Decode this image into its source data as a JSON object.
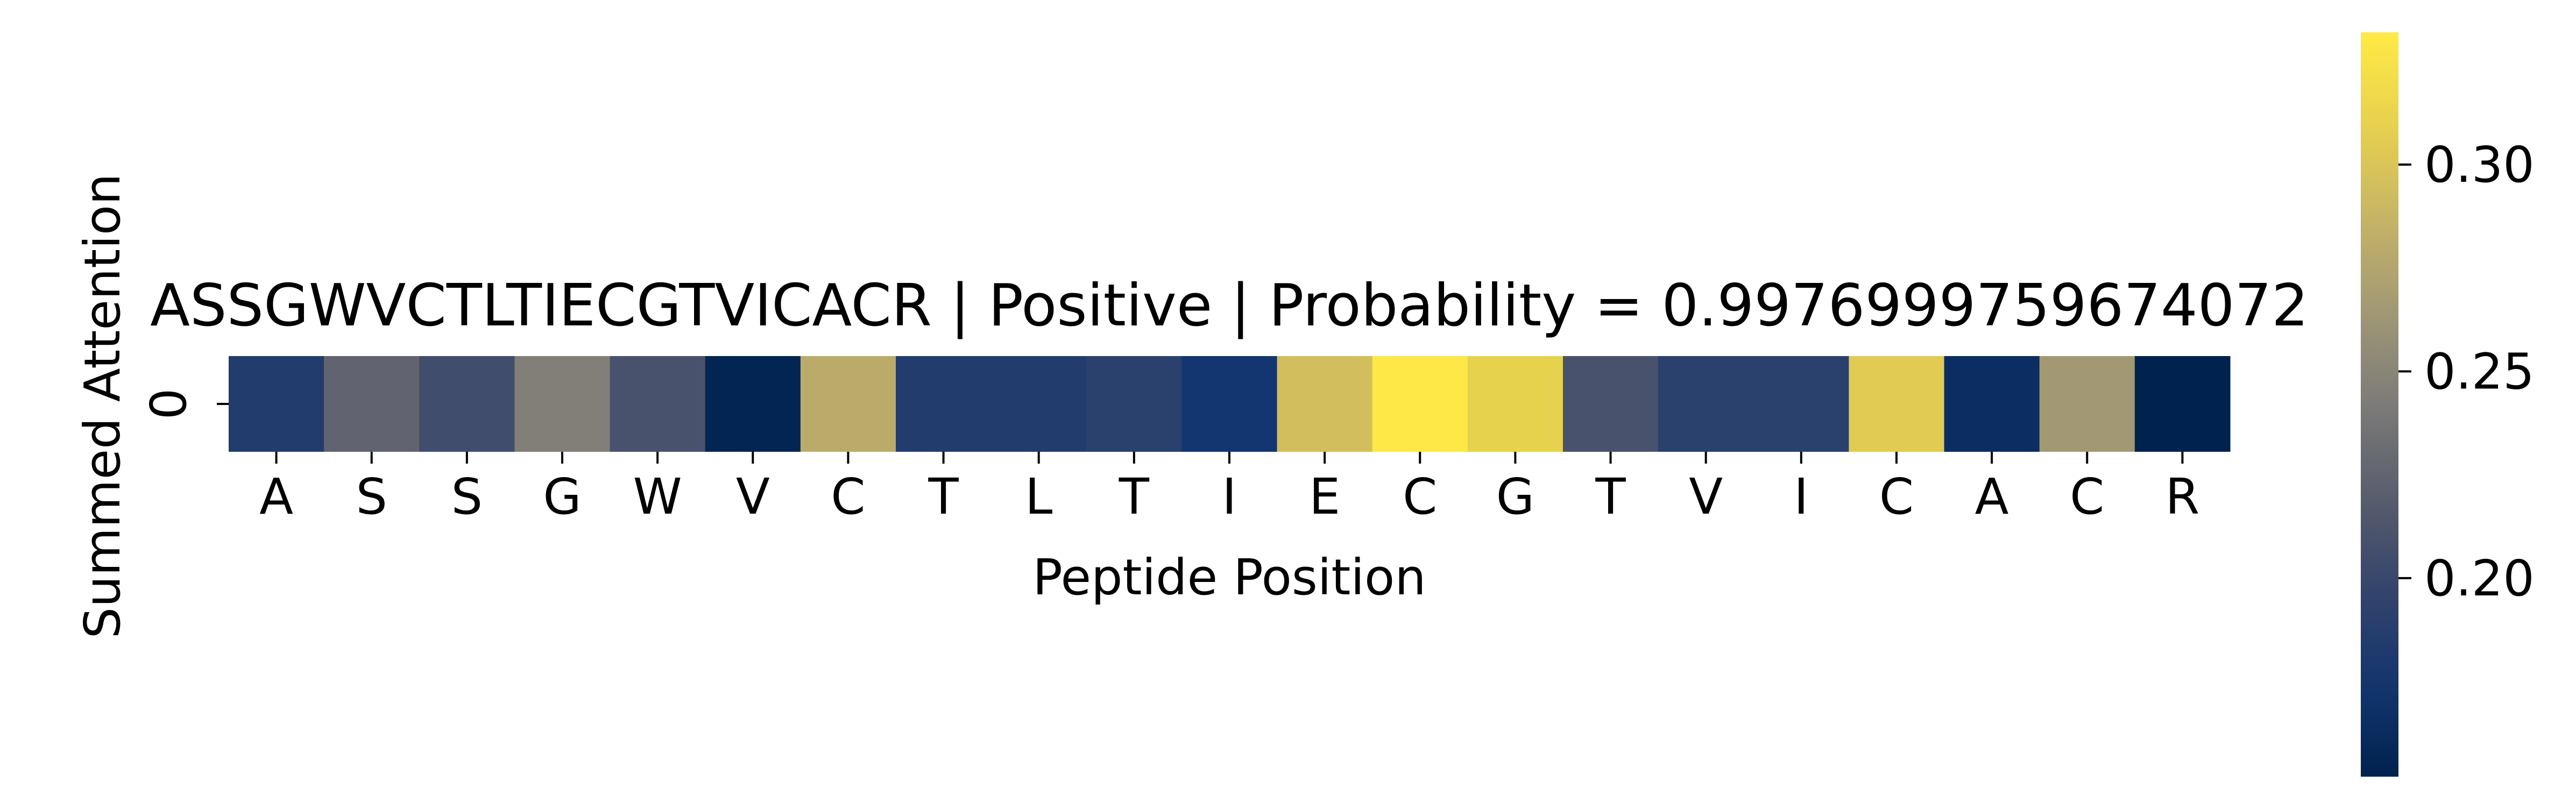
{
  "chart_data": {
    "type": "heatmap",
    "title": "ASSGWVCTLTIECGTVICACR | Positive | Probability = 0.9976999759674072",
    "xlabel": "Peptide Position",
    "ylabel": "Summed Attention",
    "x_tick_labels": [
      "A",
      "S",
      "S",
      "G",
      "W",
      "V",
      "C",
      "T",
      "L",
      "T",
      "I",
      "E",
      "C",
      "G",
      "T",
      "V",
      "I",
      "C",
      "A",
      "C",
      "R"
    ],
    "y_tick_labels": [
      "0"
    ],
    "values": [
      [
        0.185,
        0.225,
        0.205,
        0.245,
        0.21,
        0.155,
        0.28,
        0.185,
        0.185,
        0.19,
        0.175,
        0.295,
        0.33,
        0.31,
        0.21,
        0.19,
        0.19,
        0.305,
        0.165,
        0.265,
        0.152
      ]
    ],
    "colormap": "cividis",
    "colorbar": {
      "range": [
        0.152,
        0.332
      ],
      "ticks": [
        0.2,
        0.25,
        0.3
      ],
      "tick_labels": [
        "0.20",
        "0.25",
        "0.30"
      ]
    },
    "grid": false,
    "legend": "colorbar-right"
  }
}
